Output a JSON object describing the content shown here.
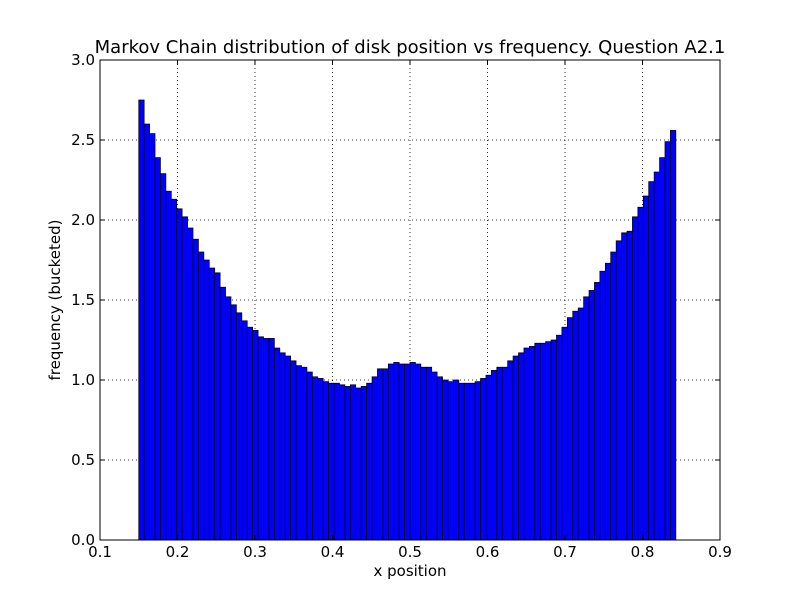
{
  "chart_data": {
    "type": "bar",
    "title": "Markov Chain distribution of disk position vs frequency. Question A2.1",
    "xlabel": "x position",
    "ylabel": "frequency (bucketed)",
    "xlim": [
      0.1,
      0.9
    ],
    "ylim": [
      0.0,
      3.0
    ],
    "xticks": [
      "0.1",
      "0.2",
      "0.3",
      "0.4",
      "0.5",
      "0.6",
      "0.7",
      "0.8",
      "0.9"
    ],
    "yticks": [
      "0.0",
      "0.5",
      "1.0",
      "1.5",
      "2.0",
      "2.5",
      "3.0"
    ],
    "grid": true,
    "bin_start": 0.15,
    "bin_width": 0.007,
    "bar_color": "#0000ff",
    "edge_color": "#000000",
    "values": [
      2.75,
      2.6,
      2.54,
      2.39,
      2.29,
      2.18,
      2.13,
      2.07,
      2.02,
      1.95,
      1.88,
      1.8,
      1.75,
      1.7,
      1.67,
      1.58,
      1.52,
      1.47,
      1.42,
      1.37,
      1.33,
      1.31,
      1.27,
      1.26,
      1.26,
      1.2,
      1.17,
      1.15,
      1.12,
      1.09,
      1.08,
      1.05,
      1.02,
      1.01,
      0.99,
      0.98,
      0.98,
      0.97,
      0.96,
      0.97,
      0.95,
      0.96,
      0.98,
      1.02,
      1.07,
      1.07,
      1.1,
      1.11,
      1.1,
      1.1,
      1.11,
      1.1,
      1.08,
      1.08,
      1.05,
      1.02,
      1.0,
      0.99,
      1.0,
      0.98,
      0.98,
      0.98,
      0.99,
      1.01,
      1.03,
      1.06,
      1.08,
      1.08,
      1.12,
      1.15,
      1.17,
      1.2,
      1.21,
      1.23,
      1.23,
      1.24,
      1.25,
      1.28,
      1.33,
      1.39,
      1.43,
      1.45,
      1.52,
      1.56,
      1.61,
      1.68,
      1.73,
      1.8,
      1.87,
      1.92,
      1.93,
      2.02,
      2.08,
      2.15,
      2.24,
      2.3,
      2.39,
      2.49,
      2.56
    ]
  }
}
